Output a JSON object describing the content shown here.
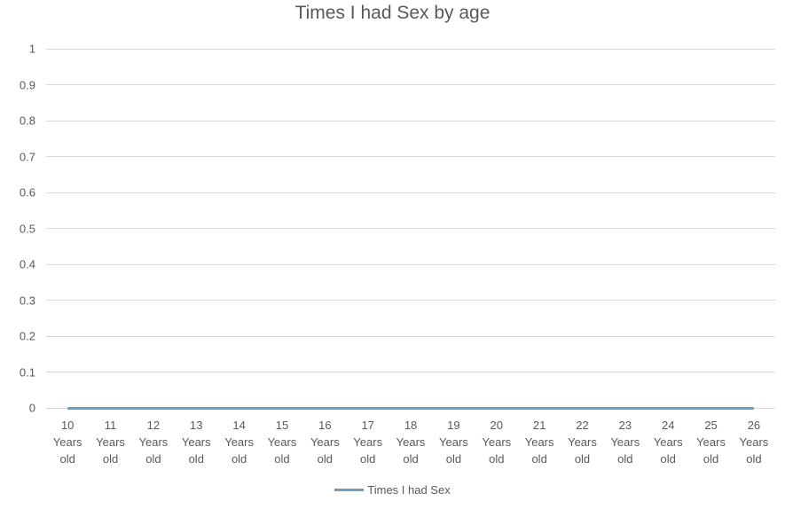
{
  "chart_data": {
    "type": "line",
    "title": "Times I had Sex by age",
    "categories": [
      "10 Years old",
      "11 Years old",
      "12 Years old",
      "13 Years old",
      "14 Years old",
      "15 Years old",
      "16 Years old",
      "17 Years old",
      "18 Years old",
      "19 Years old",
      "20 Years old",
      "21 Years old",
      "22 Years old",
      "23 Years old",
      "24 Years old",
      "25 Years old",
      "26 Years old"
    ],
    "series": [
      {
        "name": "Times I had Sex",
        "values": [
          0,
          0,
          0,
          0,
          0,
          0,
          0,
          0,
          0,
          0,
          0,
          0,
          0,
          0,
          0,
          0,
          0
        ],
        "color": "#6d9ec0"
      }
    ],
    "xlabel": "",
    "ylabel": "",
    "ylim": [
      0,
      1
    ],
    "yticks": [
      0,
      0.1,
      0.2,
      0.3,
      0.4,
      0.5,
      0.6,
      0.7,
      0.8,
      0.9,
      1
    ],
    "grid": true,
    "legend_position": "bottom"
  },
  "legend": {
    "label": "Times I had Sex"
  },
  "colors": {
    "title_text": "#595959",
    "axis_text": "#595959",
    "gridline": "#d9d9d9",
    "series_line": "#6d9ec0",
    "background": "#ffffff"
  }
}
